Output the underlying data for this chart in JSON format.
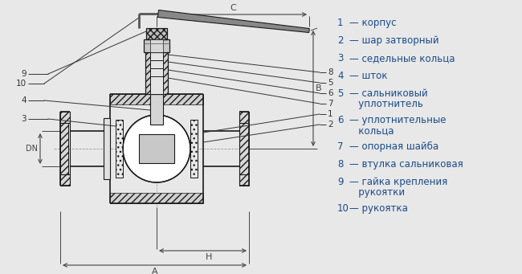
{
  "bg_color": "#e8e8e8",
  "line_color": "#1a1a1a",
  "hatch_color": "#333333",
  "dim_color": "#444444",
  "text_blue": "#1a4a8a",
  "center_line_color": "#999999",
  "legend_items": [
    {
      "num": "1",
      "lines": [
        "— корпус"
      ]
    },
    {
      "num": "2",
      "lines": [
        "— шар затворный"
      ]
    },
    {
      "num": "3",
      "lines": [
        "— седельные кольца"
      ]
    },
    {
      "num": "4",
      "lines": [
        "— шток"
      ]
    },
    {
      "num": "5",
      "lines": [
        "— сальниковый",
        "   уплотнитель"
      ]
    },
    {
      "num": "6",
      "lines": [
        "— уплотнительные",
        "   кольца"
      ]
    },
    {
      "num": "7",
      "lines": [
        "— опорная шайба"
      ]
    },
    {
      "num": "8",
      "lines": [
        "— втулка сальниковая"
      ]
    },
    {
      "num": "9",
      "lines": [
        "— гайка крепления",
        "   рукоятки"
      ]
    },
    {
      "num": "10",
      "lines": [
        "— рукоятка"
      ]
    }
  ]
}
